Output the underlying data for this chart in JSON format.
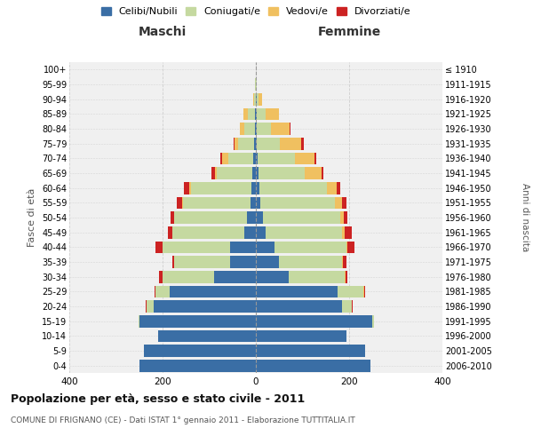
{
  "age_groups": [
    "0-4",
    "5-9",
    "10-14",
    "15-19",
    "20-24",
    "25-29",
    "30-34",
    "35-39",
    "40-44",
    "45-49",
    "50-54",
    "55-59",
    "60-64",
    "65-69",
    "70-74",
    "75-79",
    "80-84",
    "85-89",
    "90-94",
    "95-99",
    "100+"
  ],
  "birth_years": [
    "2006-2010",
    "2001-2005",
    "1996-2000",
    "1991-1995",
    "1986-1990",
    "1981-1985",
    "1976-1980",
    "1971-1975",
    "1966-1970",
    "1961-1965",
    "1956-1960",
    "1951-1955",
    "1946-1950",
    "1941-1945",
    "1936-1940",
    "1931-1935",
    "1926-1930",
    "1921-1925",
    "1916-1920",
    "1911-1915",
    "≤ 1910"
  ],
  "maschi": {
    "celibe": [
      250,
      240,
      210,
      250,
      220,
      185,
      90,
      55,
      55,
      25,
      20,
      12,
      10,
      8,
      5,
      3,
      2,
      2,
      0,
      0,
      0
    ],
    "coniugato": [
      0,
      0,
      0,
      2,
      15,
      30,
      110,
      120,
      145,
      155,
      155,
      145,
      130,
      75,
      55,
      35,
      22,
      15,
      3,
      1,
      0
    ],
    "vedovo": [
      0,
      0,
      0,
      0,
      0,
      0,
      0,
      0,
      0,
      0,
      0,
      2,
      2,
      5,
      12,
      8,
      10,
      10,
      3,
      0,
      0
    ],
    "divorziato": [
      0,
      0,
      0,
      0,
      2,
      2,
      8,
      5,
      15,
      8,
      8,
      10,
      12,
      8,
      5,
      2,
      0,
      0,
      0,
      0,
      0
    ]
  },
  "femmine": {
    "nubile": [
      245,
      235,
      195,
      250,
      185,
      175,
      70,
      50,
      40,
      20,
      15,
      10,
      8,
      5,
      3,
      2,
      2,
      2,
      1,
      0,
      0
    ],
    "coniugata": [
      0,
      0,
      0,
      3,
      20,
      55,
      120,
      135,
      155,
      165,
      165,
      160,
      145,
      100,
      80,
      50,
      30,
      18,
      5,
      1,
      0
    ],
    "vedova": [
      0,
      0,
      0,
      0,
      0,
      2,
      2,
      2,
      2,
      5,
      8,
      15,
      20,
      35,
      42,
      45,
      40,
      30,
      8,
      1,
      0
    ],
    "divorziata": [
      0,
      0,
      0,
      0,
      2,
      2,
      5,
      8,
      15,
      15,
      8,
      10,
      8,
      5,
      5,
      5,
      2,
      0,
      0,
      0,
      0
    ]
  },
  "colors": {
    "celibe": "#3A6EA5",
    "coniugato": "#C5D9A0",
    "vedovo": "#F0C060",
    "divorziato": "#CC2222"
  },
  "title": "Popolazione per età, sesso e stato civile - 2011",
  "subtitle": "COMUNE DI FRIGNANO (CE) - Dati ISTAT 1° gennaio 2011 - Elaborazione TUTTITALIA.IT",
  "xlabel_left": "Maschi",
  "xlabel_right": "Femmine",
  "ylabel_left": "Fasce di età",
  "ylabel_right": "Anni di nascita",
  "xlim": 400,
  "background_color": "#ffffff",
  "grid_color": "#cccccc"
}
